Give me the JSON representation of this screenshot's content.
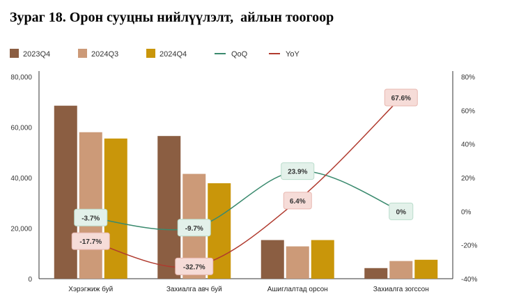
{
  "title": "Зураг 18. Орон сууцны нийлүүлэлт,  айлын тоогоор",
  "chart_data": {
    "type": "bar",
    "categories": [
      "Хэрэгжиж буй",
      "Захиалга авч буй",
      "Ашиглалтад орсон",
      "Захиалга зогссон"
    ],
    "left_axis": {
      "range": [
        0,
        80000
      ],
      "ticks": [
        0,
        20000,
        40000,
        60000,
        80000
      ],
      "tick_labels": [
        "0",
        "20,000",
        "40,000",
        "60,000",
        "80,000"
      ]
    },
    "right_axis": {
      "range": [
        -40,
        80
      ],
      "ticks": [
        -40,
        -20,
        0,
        20,
        40,
        60,
        80
      ],
      "tick_labels": [
        "-40%",
        "-20%",
        "0%",
        "20%",
        "40%",
        "60%",
        "80%"
      ]
    },
    "series": [
      {
        "name": "2023Q4",
        "kind": "bar",
        "color": "#8b5e42",
        "values": [
          68500,
          56500,
          15300,
          4200
        ]
      },
      {
        "name": "2024Q3",
        "kind": "bar",
        "color": "#cc9a78",
        "values": [
          58000,
          41500,
          12800,
          7000
        ]
      },
      {
        "name": "2024Q4",
        "kind": "bar",
        "color": "#c9960a",
        "values": [
          55500,
          37800,
          15300,
          7500
        ]
      },
      {
        "name": "QoQ",
        "kind": "line",
        "axis": "right",
        "color": "#3a8a6e",
        "values": [
          -3.7,
          -9.7,
          23.9,
          0
        ],
        "labels": [
          "-3.7%",
          "-9.7%",
          "23.9%",
          "0%"
        ]
      },
      {
        "name": "YoY",
        "kind": "line",
        "axis": "right",
        "color": "#b03a2e",
        "values": [
          -17.7,
          -32.7,
          6.4,
          67.6
        ],
        "labels": [
          "-17.7%",
          "-32.7%",
          "6.4%",
          "67.6%"
        ]
      }
    ],
    "legend": {
      "position": "top-left"
    }
  }
}
